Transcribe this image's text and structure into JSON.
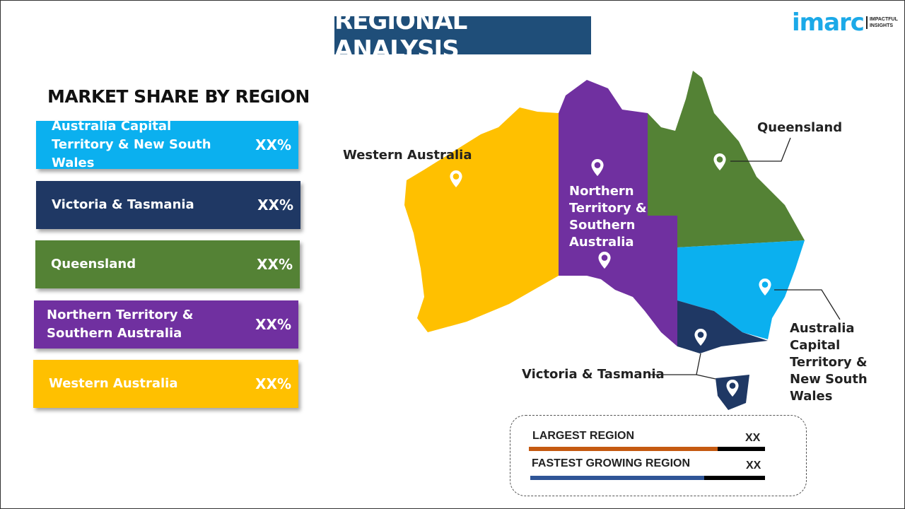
{
  "title": "REGIONAL ANALYSIS",
  "logo": {
    "word": "imarc",
    "tagline_1": "IMPACTFUL",
    "tagline_2": "INSIGHTS"
  },
  "left": {
    "heading": "MARKET SHARE BY REGION",
    "regions": [
      {
        "name": "Australia Capital Territory & New South Wales",
        "value": "XX%",
        "color": "#0bb0ef"
      },
      {
        "name": "Victoria & Tasmania",
        "value": "XX%",
        "color": "#1f3864"
      },
      {
        "name": "Queensland",
        "value": "XX%",
        "color": "#548235"
      },
      {
        "name": "Northern Territory & Southern Australia",
        "value": "XX%",
        "color": "#7030a0"
      },
      {
        "name": "Western Australia",
        "value": "XX%",
        "color": "#ffc000"
      }
    ]
  },
  "map": {
    "labels": {
      "wa": "Western Australia",
      "nt_1": "Northern",
      "nt_2": "Territory &",
      "nt_3": "Southern",
      "nt_4": "Australia",
      "qld": "Queensland",
      "nsw_1": "Australia",
      "nsw_2": "Capital Territory &",
      "nsw_3": "New South Wales",
      "vic": "Victoria & Tasmania"
    }
  },
  "stats": {
    "largest": {
      "label": "LARGEST REGION",
      "value": "XX",
      "fill_percent": 80,
      "color": "#c55a11"
    },
    "fastest": {
      "label": "FASTEST GROWING REGION",
      "value": "XX",
      "fill_percent": 74,
      "color": "#2f5597"
    }
  }
}
